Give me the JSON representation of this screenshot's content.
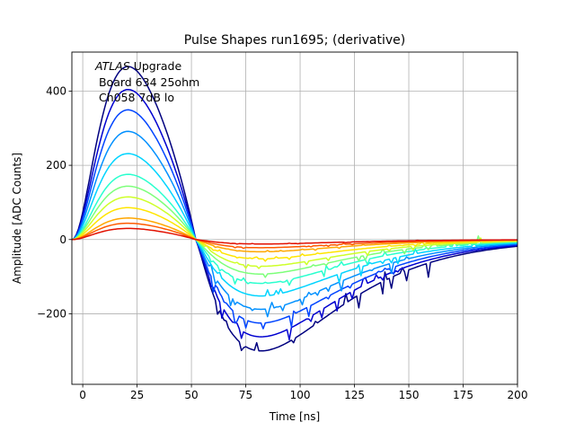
{
  "chart_data": {
    "type": "line",
    "title": "Pulse Shapes run1695; (derivative)",
    "xlabel": "Time [ns]",
    "ylabel": "Amplitude [ADC Counts]",
    "xlim": [
      -5,
      200
    ],
    "ylim": [
      -390,
      505
    ],
    "xticks": [
      0,
      25,
      50,
      75,
      100,
      125,
      150,
      175,
      200
    ],
    "yticks": [
      -200,
      0,
      200,
      400
    ],
    "grid": true,
    "annotation": {
      "atlas": "ATLAS",
      "line1_rest": " Upgrade",
      "line2": " Board 634 25ohm",
      "line3": " Ch058 7dB lo"
    },
    "series": [
      {
        "color": "#00007f",
        "peak": 467,
        "trough": -300
      },
      {
        "color": "#0000d0",
        "peak": 405,
        "trough": -262
      },
      {
        "color": "#0044ff",
        "peak": 350,
        "trough": -225
      },
      {
        "color": "#0090ff",
        "peak": 292,
        "trough": -188
      },
      {
        "color": "#00d4ff",
        "peak": 232,
        "trough": -152
      },
      {
        "color": "#29ffce",
        "peak": 176,
        "trough": -118
      },
      {
        "color": "#7dff7a",
        "peak": 144,
        "trough": -93
      },
      {
        "color": "#ceff29",
        "peak": 115,
        "trough": -72
      },
      {
        "color": "#ffe500",
        "peak": 86,
        "trough": -52
      },
      {
        "color": "#ffa700",
        "peak": 58,
        "trough": -33
      },
      {
        "color": "#ff5a00",
        "peak": 44,
        "trough": -22
      },
      {
        "color": "#e21000",
        "peak": 30,
        "trough": -12
      }
    ]
  }
}
